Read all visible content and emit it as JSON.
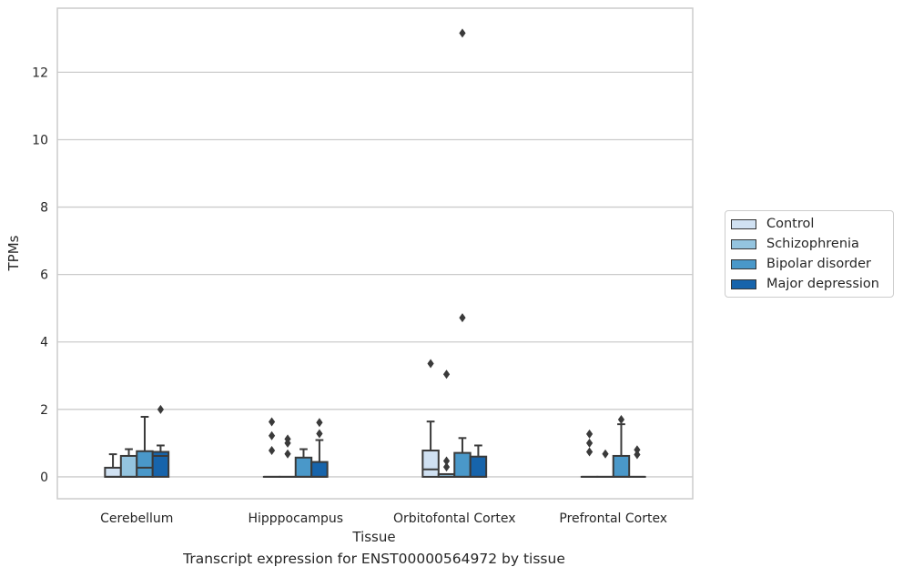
{
  "chart_data": {
    "type": "boxplot",
    "xlabel": "Tissue",
    "ylabel": "TPMs",
    "caption": "Transcript expression for ENST00000564972 by tissue",
    "ylim": [
      -0.65,
      13.9
    ],
    "yticks": [
      0,
      2,
      4,
      6,
      8,
      10,
      12
    ],
    "grid": true,
    "legend_position": "right",
    "categories": [
      "Cerebellum",
      "Hipppocampus",
      "Orbitofontal Cortex",
      "Prefrontal Cortex"
    ],
    "series": [
      {
        "name": "Control",
        "color": "#d0e1f2",
        "boxes": [
          {
            "q1": 0.0,
            "median": 0.0,
            "q3": 0.27,
            "whisker_low": 0.0,
            "whisker_high": 0.67,
            "outliers": []
          },
          {
            "q1": 0.0,
            "median": 0.0,
            "q3": 0.0,
            "whisker_low": 0.0,
            "whisker_high": 0.0,
            "outliers": [
              1.63,
              1.22,
              0.78
            ]
          },
          {
            "q1": 0.0,
            "median": 0.22,
            "q3": 0.78,
            "whisker_low": 0.0,
            "whisker_high": 1.64,
            "outliers": [
              3.36
            ]
          },
          {
            "q1": 0.0,
            "median": 0.0,
            "q3": 0.0,
            "whisker_low": 0.0,
            "whisker_high": 0.0,
            "outliers": [
              1.27,
              1.0,
              0.74
            ]
          }
        ]
      },
      {
        "name": "Schizophrenia",
        "color": "#94c4df",
        "boxes": [
          {
            "q1": 0.0,
            "median": 0.0,
            "q3": 0.62,
            "whisker_low": 0.0,
            "whisker_high": 0.82,
            "outliers": []
          },
          {
            "q1": 0.0,
            "median": 0.0,
            "q3": 0.0,
            "whisker_low": 0.0,
            "whisker_high": 0.0,
            "outliers": [
              1.12,
              1.0,
              0.68
            ]
          },
          {
            "q1": 0.0,
            "median": 0.0,
            "q3": 0.08,
            "whisker_low": 0.0,
            "whisker_high": 0.08,
            "outliers": [
              3.04,
              0.47,
              0.29
            ]
          },
          {
            "q1": 0.0,
            "median": 0.0,
            "q3": 0.0,
            "whisker_low": 0.0,
            "whisker_high": 0.0,
            "outliers": [
              0.68
            ]
          }
        ]
      },
      {
        "name": "Bipolar disorder",
        "color": "#4a98c9",
        "boxes": [
          {
            "q1": 0.0,
            "median": 0.27,
            "q3": 0.76,
            "whisker_low": 0.0,
            "whisker_high": 1.78,
            "outliers": []
          },
          {
            "q1": 0.0,
            "median": 0.0,
            "q3": 0.57,
            "whisker_low": 0.0,
            "whisker_high": 0.82,
            "outliers": []
          },
          {
            "q1": 0.0,
            "median": 0.0,
            "q3": 0.71,
            "whisker_low": 0.0,
            "whisker_high": 1.15,
            "outliers": [
              13.16,
              4.72
            ]
          },
          {
            "q1": 0.0,
            "median": 0.0,
            "q3": 0.62,
            "whisker_low": 0.0,
            "whisker_high": 1.56,
            "outliers": [
              1.7
            ]
          }
        ]
      },
      {
        "name": "Major depression",
        "color": "#1764ab",
        "boxes": [
          {
            "q1": 0.0,
            "median": 0.62,
            "q3": 0.74,
            "whisker_low": 0.0,
            "whisker_high": 0.93,
            "outliers": [
              2.0
            ]
          },
          {
            "q1": 0.0,
            "median": 0.0,
            "q3": 0.44,
            "whisker_low": 0.0,
            "whisker_high": 1.09,
            "outliers": [
              1.61,
              1.28
            ]
          },
          {
            "q1": 0.0,
            "median": 0.0,
            "q3": 0.6,
            "whisker_low": 0.0,
            "whisker_high": 0.93,
            "outliers": []
          },
          {
            "q1": 0.0,
            "median": 0.0,
            "q3": 0.0,
            "whisker_low": 0.0,
            "whisker_high": 0.0,
            "outliers": [
              0.8,
              0.66
            ]
          }
        ]
      }
    ]
  }
}
